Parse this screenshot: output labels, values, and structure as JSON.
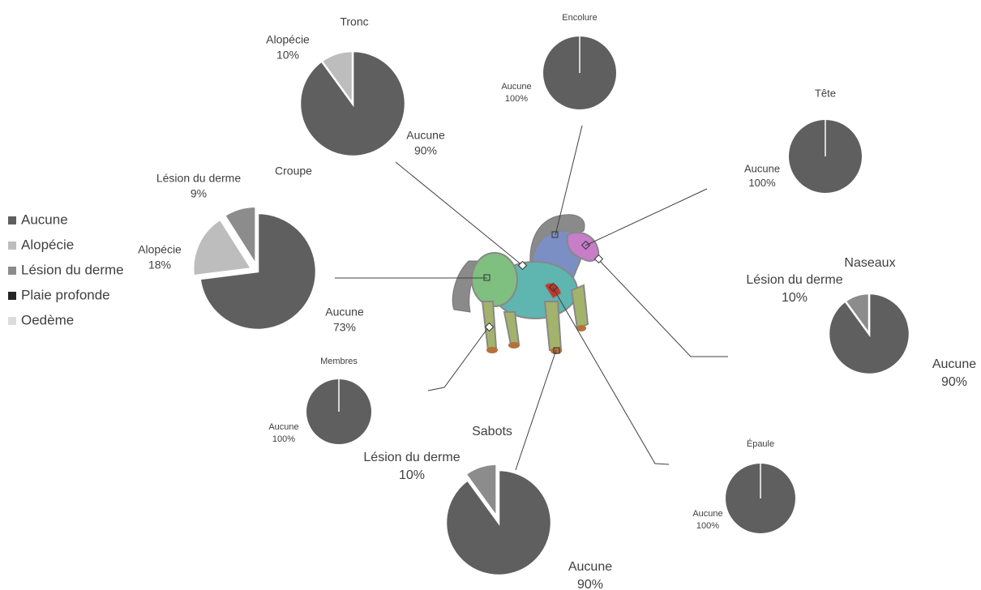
{
  "legend": {
    "categories": [
      "Aucune",
      "Alopécie",
      "Lésion du derme",
      "Plaie profonde",
      "Oedème"
    ],
    "colors": [
      "#5f5f5f",
      "#bdbdbd",
      "#8c8c8c",
      "#262626",
      "#dcdcdc"
    ]
  },
  "chart_data": [
    {
      "type": "pie",
      "title": "Tronc",
      "categories": [
        "Aucune",
        "Alopécie"
      ],
      "values": [
        90,
        10
      ],
      "value_labels": [
        "90%",
        "10%"
      ],
      "colors": [
        "#5f5f5f",
        "#bdbdbd"
      ]
    },
    {
      "type": "pie",
      "title": "Encolure",
      "categories": [
        "Aucune"
      ],
      "values": [
        100
      ],
      "value_labels": [
        "100%"
      ],
      "colors": [
        "#5f5f5f"
      ]
    },
    {
      "type": "pie",
      "title": "Tête",
      "categories": [
        "Aucune"
      ],
      "values": [
        100
      ],
      "value_labels": [
        "100%"
      ],
      "colors": [
        "#5f5f5f"
      ]
    },
    {
      "type": "pie",
      "title": "Croupe",
      "categories": [
        "Aucune",
        "Alopécie",
        "Lésion du derme"
      ],
      "values": [
        73,
        18,
        9
      ],
      "value_labels": [
        "73%",
        "18%",
        "9%"
      ],
      "colors": [
        "#5f5f5f",
        "#bdbdbd",
        "#8c8c8c"
      ],
      "explode": true
    },
    {
      "type": "pie",
      "title": "Naseaux",
      "categories": [
        "Aucune",
        "Lésion du derme"
      ],
      "values": [
        90,
        10
      ],
      "value_labels": [
        "90%",
        "10%"
      ],
      "colors": [
        "#5f5f5f",
        "#8c8c8c"
      ]
    },
    {
      "type": "pie",
      "title": "Membres",
      "categories": [
        "Aucune"
      ],
      "values": [
        100
      ],
      "value_labels": [
        "100%"
      ],
      "colors": [
        "#5f5f5f"
      ]
    },
    {
      "type": "pie",
      "title": "Sabots",
      "categories": [
        "Aucune",
        "Lésion du derme"
      ],
      "values": [
        90,
        10
      ],
      "value_labels": [
        "90%",
        "10%"
      ],
      "colors": [
        "#5f5f5f",
        "#8c8c8c"
      ],
      "explode": true
    },
    {
      "type": "pie",
      "title": "Épaule",
      "categories": [
        "Aucune"
      ],
      "values": [
        100
      ],
      "value_labels": [
        "100%"
      ],
      "colors": [
        "#5f5f5f"
      ]
    }
  ]
}
